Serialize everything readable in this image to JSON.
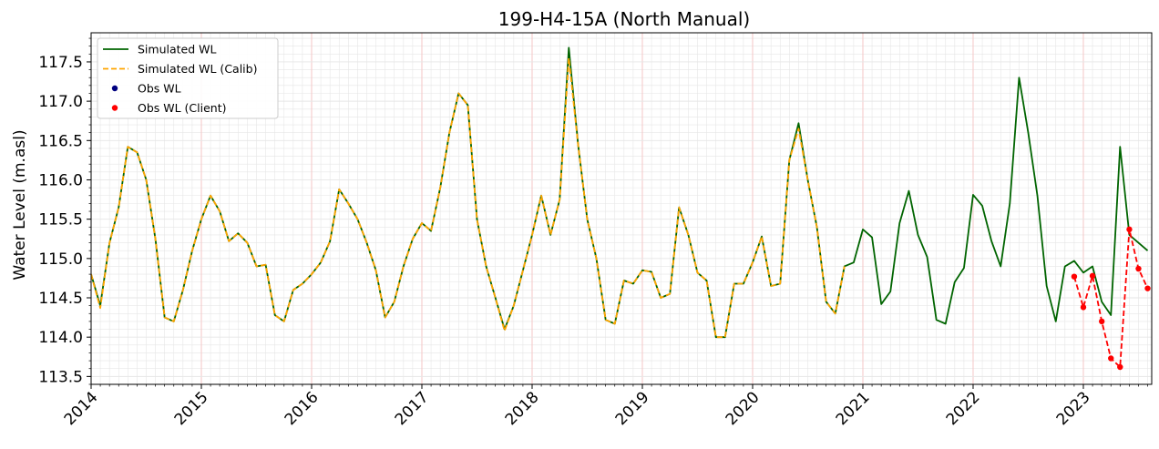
{
  "chart_data": {
    "type": "line",
    "title": "199-H4-15A (North Manual)",
    "xlabel": "",
    "ylabel": "Water Level (m.asl)",
    "x_range": [
      2014.0,
      2023.62
    ],
    "ylim": [
      113.4,
      117.87
    ],
    "x_ticks": [
      {
        "value": 2014,
        "label": "2014"
      },
      {
        "value": 2015,
        "label": "2015"
      },
      {
        "value": 2016,
        "label": "2016"
      },
      {
        "value": 2017,
        "label": "2017"
      },
      {
        "value": 2018,
        "label": "2018"
      },
      {
        "value": 2019,
        "label": "2019"
      },
      {
        "value": 2020,
        "label": "2020"
      },
      {
        "value": 2021,
        "label": "2021"
      },
      {
        "value": 2022,
        "label": "2022"
      },
      {
        "value": 2023,
        "label": "2023"
      }
    ],
    "y_ticks": [
      {
        "value": 113.5,
        "label": "113.5"
      },
      {
        "value": 114.0,
        "label": "114.0"
      },
      {
        "value": 114.5,
        "label": "114.5"
      },
      {
        "value": 115.0,
        "label": "115.0"
      },
      {
        "value": 115.5,
        "label": "115.5"
      },
      {
        "value": 116.0,
        "label": "116.0"
      },
      {
        "value": 116.5,
        "label": "116.5"
      },
      {
        "value": 117.0,
        "label": "117.0"
      },
      {
        "value": 117.5,
        "label": "117.5"
      }
    ],
    "grid": true,
    "legend_position": "top-left",
    "colors": {
      "simulated": "#006400",
      "calib": "#ffa500",
      "obs": "#000080",
      "client": "#ff0000",
      "major_grid": "#f4c6c6",
      "minor_grid": "#e6e6e6"
    },
    "series": [
      {
        "name": "Simulated WL",
        "style": "solid",
        "points": [
          [
            2014.0,
            114.8
          ],
          [
            2014.083,
            114.4
          ],
          [
            2014.167,
            115.2
          ],
          [
            2014.25,
            115.65
          ],
          [
            2014.333,
            116.42
          ],
          [
            2014.417,
            116.35
          ],
          [
            2014.5,
            116.0
          ],
          [
            2014.583,
            115.25
          ],
          [
            2014.667,
            114.25
          ],
          [
            2014.75,
            114.2
          ],
          [
            2014.833,
            114.6
          ],
          [
            2014.917,
            115.1
          ],
          [
            2015.0,
            115.5
          ],
          [
            2015.083,
            115.8
          ],
          [
            2015.167,
            115.6
          ],
          [
            2015.25,
            115.22
          ],
          [
            2015.333,
            115.32
          ],
          [
            2015.417,
            115.2
          ],
          [
            2015.5,
            114.9
          ],
          [
            2015.583,
            114.92
          ],
          [
            2015.667,
            114.28
          ],
          [
            2015.75,
            114.2
          ],
          [
            2015.833,
            114.6
          ],
          [
            2015.917,
            114.68
          ],
          [
            2016.0,
            114.8
          ],
          [
            2016.083,
            114.95
          ],
          [
            2016.167,
            115.22
          ],
          [
            2016.25,
            115.88
          ],
          [
            2016.333,
            115.7
          ],
          [
            2016.417,
            115.5
          ],
          [
            2016.5,
            115.2
          ],
          [
            2016.583,
            114.85
          ],
          [
            2016.667,
            114.25
          ],
          [
            2016.75,
            114.45
          ],
          [
            2016.833,
            114.9
          ],
          [
            2016.917,
            115.25
          ],
          [
            2017.0,
            115.45
          ],
          [
            2017.083,
            115.35
          ],
          [
            2017.167,
            115.9
          ],
          [
            2017.25,
            116.6
          ],
          [
            2017.333,
            117.1
          ],
          [
            2017.417,
            116.95
          ],
          [
            2017.5,
            115.5
          ],
          [
            2017.583,
            114.9
          ],
          [
            2017.667,
            114.5
          ],
          [
            2017.75,
            114.1
          ],
          [
            2017.833,
            114.4
          ],
          [
            2017.917,
            114.85
          ],
          [
            2018.0,
            115.3
          ],
          [
            2018.083,
            115.8
          ],
          [
            2018.167,
            115.3
          ],
          [
            2018.25,
            115.75
          ],
          [
            2018.333,
            117.68
          ],
          [
            2018.417,
            116.45
          ],
          [
            2018.5,
            115.5
          ],
          [
            2018.583,
            115.0
          ],
          [
            2018.667,
            114.22
          ],
          [
            2018.75,
            114.17
          ],
          [
            2018.833,
            114.72
          ],
          [
            2018.917,
            114.68
          ],
          [
            2019.0,
            114.85
          ],
          [
            2019.083,
            114.83
          ],
          [
            2019.167,
            114.5
          ],
          [
            2019.25,
            114.55
          ],
          [
            2019.333,
            115.65
          ],
          [
            2019.417,
            115.3
          ],
          [
            2019.5,
            114.82
          ],
          [
            2019.583,
            114.72
          ],
          [
            2019.667,
            114.0
          ],
          [
            2019.75,
            114.0
          ],
          [
            2019.833,
            114.68
          ],
          [
            2019.917,
            114.68
          ],
          [
            2020.0,
            114.95
          ],
          [
            2020.083,
            115.28
          ],
          [
            2020.167,
            114.65
          ],
          [
            2020.25,
            114.68
          ],
          [
            2020.333,
            116.25
          ],
          [
            2020.417,
            116.72
          ],
          [
            2020.5,
            116.0
          ],
          [
            2020.583,
            115.4
          ],
          [
            2020.667,
            114.45
          ],
          [
            2020.75,
            114.3
          ],
          [
            2020.833,
            114.9
          ],
          [
            2020.917,
            114.95
          ],
          [
            2021.0,
            115.37
          ],
          [
            2021.083,
            115.27
          ],
          [
            2021.167,
            114.42
          ],
          [
            2021.25,
            114.58
          ],
          [
            2021.333,
            115.45
          ],
          [
            2021.417,
            115.86
          ],
          [
            2021.5,
            115.3
          ],
          [
            2021.583,
            115.02
          ],
          [
            2021.667,
            114.22
          ],
          [
            2021.75,
            114.17
          ],
          [
            2021.833,
            114.7
          ],
          [
            2021.917,
            114.88
          ],
          [
            2022.0,
            115.81
          ],
          [
            2022.083,
            115.67
          ],
          [
            2022.167,
            115.22
          ],
          [
            2022.25,
            114.9
          ],
          [
            2022.333,
            115.7
          ],
          [
            2022.417,
            117.3
          ],
          [
            2022.5,
            116.6
          ],
          [
            2022.583,
            115.8
          ],
          [
            2022.667,
            114.65
          ],
          [
            2022.75,
            114.2
          ],
          [
            2022.833,
            114.9
          ],
          [
            2022.917,
            114.97
          ],
          [
            2023.0,
            114.82
          ],
          [
            2023.083,
            114.9
          ],
          [
            2023.167,
            114.45
          ],
          [
            2023.25,
            114.28
          ],
          [
            2023.333,
            116.42
          ],
          [
            2023.417,
            115.3
          ],
          [
            2023.5,
            115.2
          ],
          [
            2023.583,
            115.1
          ]
        ]
      },
      {
        "name": "Simulated WL (Calib)",
        "style": "dashed",
        "points": [
          [
            2014.0,
            114.8
          ],
          [
            2014.083,
            114.37
          ],
          [
            2014.167,
            115.2
          ],
          [
            2014.25,
            115.65
          ],
          [
            2014.333,
            116.42
          ],
          [
            2014.417,
            116.35
          ],
          [
            2014.5,
            116.0
          ],
          [
            2014.583,
            115.25
          ],
          [
            2014.667,
            114.25
          ],
          [
            2014.75,
            114.2
          ],
          [
            2014.833,
            114.6
          ],
          [
            2014.917,
            115.1
          ],
          [
            2015.0,
            115.5
          ],
          [
            2015.083,
            115.8
          ],
          [
            2015.167,
            115.6
          ],
          [
            2015.25,
            115.22
          ],
          [
            2015.333,
            115.32
          ],
          [
            2015.417,
            115.2
          ],
          [
            2015.5,
            114.9
          ],
          [
            2015.583,
            114.92
          ],
          [
            2015.667,
            114.28
          ],
          [
            2015.75,
            114.2
          ],
          [
            2015.833,
            114.6
          ],
          [
            2015.917,
            114.68
          ],
          [
            2016.0,
            114.8
          ],
          [
            2016.083,
            114.95
          ],
          [
            2016.167,
            115.22
          ],
          [
            2016.25,
            115.88
          ],
          [
            2016.333,
            115.7
          ],
          [
            2016.417,
            115.5
          ],
          [
            2016.5,
            115.2
          ],
          [
            2016.583,
            114.85
          ],
          [
            2016.667,
            114.25
          ],
          [
            2016.75,
            114.45
          ],
          [
            2016.833,
            114.9
          ],
          [
            2016.917,
            115.25
          ],
          [
            2017.0,
            115.45
          ],
          [
            2017.083,
            115.35
          ],
          [
            2017.167,
            115.9
          ],
          [
            2017.25,
            116.6
          ],
          [
            2017.333,
            117.1
          ],
          [
            2017.417,
            116.95
          ],
          [
            2017.5,
            115.5
          ],
          [
            2017.583,
            114.9
          ],
          [
            2017.667,
            114.5
          ],
          [
            2017.75,
            114.08
          ],
          [
            2017.833,
            114.4
          ],
          [
            2017.917,
            114.85
          ],
          [
            2018.0,
            115.3
          ],
          [
            2018.083,
            115.8
          ],
          [
            2018.167,
            115.3
          ],
          [
            2018.25,
            115.75
          ],
          [
            2018.333,
            117.55
          ],
          [
            2018.417,
            116.45
          ],
          [
            2018.5,
            115.5
          ],
          [
            2018.583,
            115.0
          ],
          [
            2018.667,
            114.22
          ],
          [
            2018.75,
            114.17
          ],
          [
            2018.833,
            114.72
          ],
          [
            2018.917,
            114.68
          ],
          [
            2019.0,
            114.85
          ],
          [
            2019.083,
            114.83
          ],
          [
            2019.167,
            114.5
          ],
          [
            2019.25,
            114.55
          ],
          [
            2019.333,
            115.65
          ],
          [
            2019.417,
            115.3
          ],
          [
            2019.5,
            114.82
          ],
          [
            2019.583,
            114.72
          ],
          [
            2019.667,
            114.0
          ],
          [
            2019.75,
            114.0
          ],
          [
            2019.833,
            114.68
          ],
          [
            2019.917,
            114.68
          ],
          [
            2020.0,
            114.95
          ],
          [
            2020.083,
            115.28
          ],
          [
            2020.167,
            114.65
          ],
          [
            2020.25,
            114.68
          ],
          [
            2020.333,
            116.25
          ],
          [
            2020.417,
            116.65
          ],
          [
            2020.5,
            116.0
          ],
          [
            2020.583,
            115.4
          ],
          [
            2020.667,
            114.45
          ],
          [
            2020.75,
            114.3
          ],
          [
            2020.833,
            114.9
          ]
        ]
      },
      {
        "name": "Obs WL",
        "style": "markers",
        "points": []
      },
      {
        "name": "Obs WL (Client)",
        "style": "dashed-markers",
        "points": [
          [
            2022.917,
            114.77
          ],
          [
            2023.0,
            114.38
          ],
          [
            2023.083,
            114.78
          ],
          [
            2023.167,
            114.2
          ],
          [
            2023.25,
            113.73
          ],
          [
            2023.333,
            113.62
          ],
          [
            2023.417,
            115.37
          ],
          [
            2023.5,
            114.87
          ],
          [
            2023.583,
            114.62
          ]
        ]
      }
    ]
  }
}
